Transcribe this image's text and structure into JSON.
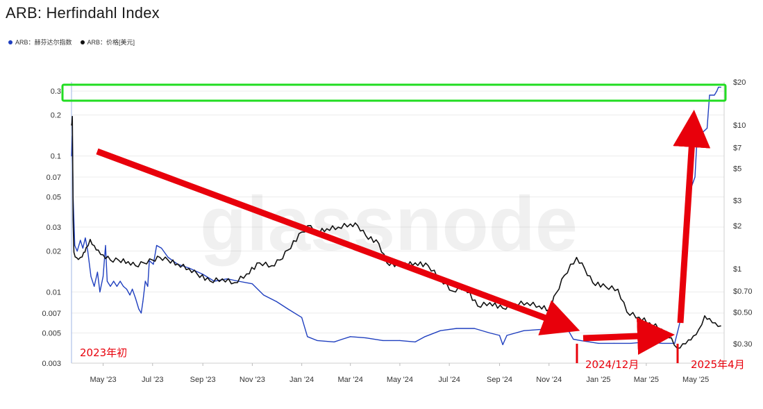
{
  "title": "ARB: Herfindahl Index",
  "legend": [
    {
      "label": "ARB：赫芬达尔指数",
      "color": "#1f3fbf"
    },
    {
      "label": "ARB：价格[美元]",
      "color": "#111111"
    }
  ],
  "watermark": "glassnode",
  "annotations": {
    "start": "2023年初",
    "mid": "2024/12月",
    "end": "2025年4月"
  },
  "chart_data": {
    "type": "line",
    "x_ticks": [
      "May '23",
      "Jul '23",
      "Sep '23",
      "Nov '23",
      "Jan '24",
      "Mar '24",
      "May '24",
      "Jul '24",
      "Sep '24",
      "Nov '24",
      "Jan '25",
      "Mar '25",
      "May '25"
    ],
    "y_left_ticks": [
      "0.3",
      "0.2",
      "0.1",
      "0.07",
      "0.05",
      "0.03",
      "0.02",
      "0.01",
      "0.007",
      "0.005",
      "0.003"
    ],
    "y_right_ticks": [
      "$20",
      "$10",
      "$7",
      "$5",
      "$3",
      "$2",
      "$1",
      "$0.70",
      "$0.50",
      "$0.30"
    ],
    "y_left_scale": "log",
    "y_right_scale": "log",
    "y_left_range": [
      0.003,
      0.35
    ],
    "y_right_range": [
      0.22,
      20
    ],
    "x_range": [
      "2023-03-23",
      "2025-06-05"
    ],
    "series": [
      {
        "name": "ARB：赫芬达尔指数",
        "axis": "left",
        "color": "#1f3fbf",
        "points": [
          [
            "2023-03-23",
            0.1
          ],
          [
            "2023-03-24",
            0.14
          ],
          [
            "2023-03-25",
            0.05
          ],
          [
            "2023-03-27",
            0.022
          ],
          [
            "2023-03-30",
            0.02
          ],
          [
            "2023-04-03",
            0.024
          ],
          [
            "2023-04-06",
            0.021
          ],
          [
            "2023-04-09",
            0.025
          ],
          [
            "2023-04-12",
            0.02
          ],
          [
            "2023-04-16",
            0.013
          ],
          [
            "2023-04-20",
            0.011
          ],
          [
            "2023-04-24",
            0.014
          ],
          [
            "2023-04-27",
            0.01
          ],
          [
            "2023-05-01",
            0.013
          ],
          [
            "2023-05-04",
            0.022
          ],
          [
            "2023-05-06",
            0.012
          ],
          [
            "2023-05-10",
            0.011
          ],
          [
            "2023-05-14",
            0.012
          ],
          [
            "2023-05-18",
            0.011
          ],
          [
            "2023-05-22",
            0.012
          ],
          [
            "2023-05-26",
            0.011
          ],
          [
            "2023-05-30",
            0.0105
          ],
          [
            "2023-06-03",
            0.0095
          ],
          [
            "2023-06-06",
            0.0105
          ],
          [
            "2023-06-10",
            0.009
          ],
          [
            "2023-06-14",
            0.0075
          ],
          [
            "2023-06-17",
            0.007
          ],
          [
            "2023-06-19",
            0.0085
          ],
          [
            "2023-06-22",
            0.012
          ],
          [
            "2023-06-25",
            0.011
          ],
          [
            "2023-06-27",
            0.017
          ],
          [
            "2023-07-02",
            0.016
          ],
          [
            "2023-07-06",
            0.022
          ],
          [
            "2023-07-12",
            0.021
          ],
          [
            "2023-07-20",
            0.018
          ],
          [
            "2023-08-01",
            0.016
          ],
          [
            "2023-08-15",
            0.015
          ],
          [
            "2023-09-01",
            0.0135
          ],
          [
            "2023-09-15",
            0.012
          ],
          [
            "2023-10-01",
            0.0125
          ],
          [
            "2023-10-15",
            0.012
          ],
          [
            "2023-11-01",
            0.0115
          ],
          [
            "2023-11-15",
            0.0095
          ],
          [
            "2023-12-01",
            0.0085
          ],
          [
            "2023-12-15",
            0.0075
          ],
          [
            "2024-01-01",
            0.0065
          ],
          [
            "2024-01-08",
            0.0047
          ],
          [
            "2024-01-20",
            0.0044
          ],
          [
            "2024-02-10",
            0.0043
          ],
          [
            "2024-02-20",
            0.0045
          ],
          [
            "2024-03-01",
            0.0047
          ],
          [
            "2024-03-20",
            0.0046
          ],
          [
            "2024-04-10",
            0.0044
          ],
          [
            "2024-05-01",
            0.0044
          ],
          [
            "2024-05-20",
            0.0043
          ],
          [
            "2024-06-01",
            0.0047
          ],
          [
            "2024-06-20",
            0.0052
          ],
          [
            "2024-07-10",
            0.0054
          ],
          [
            "2024-08-01",
            0.0054
          ],
          [
            "2024-08-20",
            0.005
          ],
          [
            "2024-09-01",
            0.0048
          ],
          [
            "2024-09-05",
            0.0041
          ],
          [
            "2024-09-10",
            0.0048
          ],
          [
            "2024-10-01",
            0.0052
          ],
          [
            "2024-10-20",
            0.0053
          ],
          [
            "2024-11-10",
            0.0053
          ],
          [
            "2024-11-25",
            0.0052
          ],
          [
            "2024-12-01",
            0.0045
          ],
          [
            "2024-12-10",
            0.0044
          ],
          [
            "2025-01-01",
            0.0042
          ],
          [
            "2025-01-20",
            0.0042
          ],
          [
            "2025-02-10",
            0.0042
          ],
          [
            "2025-03-01",
            0.0043
          ],
          [
            "2025-03-20",
            0.0042
          ],
          [
            "2025-04-05",
            0.0042
          ],
          [
            "2025-04-10",
            0.0055
          ],
          [
            "2025-04-14",
            0.007
          ],
          [
            "2025-04-18",
            0.012
          ],
          [
            "2025-04-22",
            0.04
          ],
          [
            "2025-04-26",
            0.06
          ],
          [
            "2025-04-30",
            0.07
          ],
          [
            "2025-05-03",
            0.15
          ],
          [
            "2025-05-10",
            0.15
          ],
          [
            "2025-05-15",
            0.16
          ],
          [
            "2025-05-18",
            0.28
          ],
          [
            "2025-05-24",
            0.28
          ],
          [
            "2025-05-27",
            0.3
          ],
          [
            "2025-05-29",
            0.32
          ],
          [
            "2025-06-01",
            0.32
          ]
        ]
      },
      {
        "name": "ARB：价格[美元]",
        "axis": "right",
        "color": "#111111",
        "points": [
          [
            "2023-03-23",
            10
          ],
          [
            "2023-03-24",
            11.5
          ],
          [
            "2023-03-25",
            2.2
          ],
          [
            "2023-03-26",
            1.3
          ],
          [
            "2023-03-29",
            1.2
          ],
          [
            "2023-04-03",
            1.2
          ],
          [
            "2023-04-07",
            1.3
          ],
          [
            "2023-04-10",
            1.4
          ],
          [
            "2023-04-15",
            1.6
          ],
          [
            "2023-04-20",
            1.45
          ],
          [
            "2023-04-25",
            1.35
          ],
          [
            "2023-05-01",
            1.25
          ],
          [
            "2023-05-10",
            1.15
          ],
          [
            "2023-05-20",
            1.15
          ],
          [
            "2023-06-01",
            1.12
          ],
          [
            "2023-06-10",
            1.05
          ],
          [
            "2023-06-20",
            1.1
          ],
          [
            "2023-07-01",
            1.15
          ],
          [
            "2023-07-10",
            1.2
          ],
          [
            "2023-07-20",
            1.15
          ],
          [
            "2023-08-01",
            1.08
          ],
          [
            "2023-08-15",
            1.0
          ],
          [
            "2023-08-25",
            0.92
          ],
          [
            "2023-09-10",
            0.82
          ],
          [
            "2023-09-25",
            0.85
          ],
          [
            "2023-10-10",
            0.8
          ],
          [
            "2023-10-25",
            0.92
          ],
          [
            "2023-11-10",
            1.1
          ],
          [
            "2023-11-25",
            1.05
          ],
          [
            "2023-12-05",
            1.15
          ],
          [
            "2023-12-15",
            1.35
          ],
          [
            "2024-01-01",
            1.8
          ],
          [
            "2024-01-12",
            2.0
          ],
          [
            "2024-01-20",
            1.8
          ],
          [
            "2024-02-01",
            1.9
          ],
          [
            "2024-02-15",
            1.95
          ],
          [
            "2024-03-01",
            2.05
          ],
          [
            "2024-03-10",
            2.0
          ],
          [
            "2024-03-20",
            1.7
          ],
          [
            "2024-04-05",
            1.5
          ],
          [
            "2024-04-15",
            1.1
          ],
          [
            "2024-05-01",
            1.05
          ],
          [
            "2024-05-20",
            1.1
          ],
          [
            "2024-06-05",
            1.05
          ],
          [
            "2024-06-20",
            0.85
          ],
          [
            "2024-07-05",
            0.7
          ],
          [
            "2024-07-20",
            0.75
          ],
          [
            "2024-08-05",
            0.55
          ],
          [
            "2024-08-20",
            0.58
          ],
          [
            "2024-09-05",
            0.53
          ],
          [
            "2024-09-20",
            0.57
          ],
          [
            "2024-10-05",
            0.58
          ],
          [
            "2024-10-20",
            0.55
          ],
          [
            "2024-11-01",
            0.52
          ],
          [
            "2024-11-10",
            0.68
          ],
          [
            "2024-11-20",
            0.9
          ],
          [
            "2024-12-05",
            1.2
          ],
          [
            "2024-12-15",
            1.0
          ],
          [
            "2024-12-25",
            0.8
          ],
          [
            "2025-01-10",
            0.75
          ],
          [
            "2025-01-25",
            0.72
          ],
          [
            "2025-02-05",
            0.5
          ],
          [
            "2025-02-20",
            0.46
          ],
          [
            "2025-03-05",
            0.42
          ],
          [
            "2025-03-20",
            0.38
          ],
          [
            "2025-04-01",
            0.33
          ],
          [
            "2025-04-08",
            0.28
          ],
          [
            "2025-04-15",
            0.3
          ],
          [
            "2025-04-22",
            0.32
          ],
          [
            "2025-04-28",
            0.34
          ],
          [
            "2025-05-05",
            0.38
          ],
          [
            "2025-05-12",
            0.47
          ],
          [
            "2025-05-18",
            0.45
          ],
          [
            "2025-05-25",
            0.42
          ],
          [
            "2025-06-01",
            0.4
          ]
        ]
      }
    ]
  }
}
